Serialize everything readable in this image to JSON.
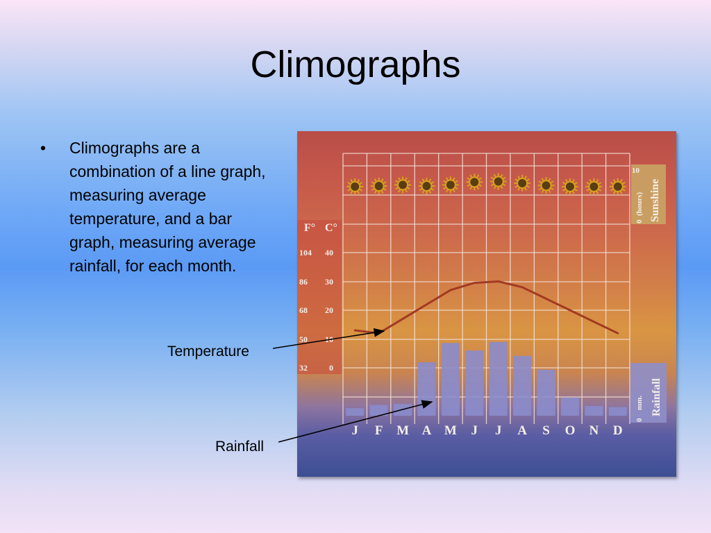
{
  "slide": {
    "title": "Climographs",
    "bullet": {
      "marker": "•",
      "text": "Climographs are a combination of a line graph, measuring average temperature, and a bar graph, measuring average rainfall, for each month."
    },
    "callouts": {
      "temperature": "Temperature",
      "rainfall": "Rainfall"
    }
  },
  "chart_data": {
    "type": "bar",
    "categories": [
      "J",
      "F",
      "M",
      "A",
      "M",
      "J",
      "J",
      "A",
      "S",
      "O",
      "N",
      "D"
    ],
    "series": [
      {
        "name": "Temperature",
        "type": "line",
        "axis": "C°",
        "values": [
          13,
          12,
          17,
          22,
          27,
          29.5,
          30,
          28,
          24,
          20,
          16,
          12
        ]
      },
      {
        "name": "Rainfall",
        "type": "bar",
        "axis": "mm.",
        "values": [
          7,
          10,
          11,
          50,
          68,
          61,
          69,
          56,
          43,
          17,
          9,
          8
        ]
      },
      {
        "name": "Sunshine",
        "type": "icons",
        "axis": "(hours)",
        "values": [
          6.6,
          6.7,
          6.9,
          6.7,
          6.9,
          7.4,
          7.5,
          7.2,
          6.8,
          6.6,
          6.6,
          6.6
        ]
      }
    ],
    "temperature_axis": {
      "fahrenheit_label": "F°",
      "celsius_label": "C°",
      "fahrenheit_ticks": [
        "104",
        "86",
        "68",
        "50",
        "32"
      ],
      "celsius_ticks": [
        "40",
        "30",
        "20",
        "10",
        "0"
      ],
      "ylim": [
        0,
        40
      ]
    },
    "rainfall_axis": {
      "title": "Rainfall",
      "unit": "mm.",
      "zero_label": "0",
      "ylim": [
        0,
        100
      ]
    },
    "sunshine_axis": {
      "title": "Sunshine",
      "unit": "(hours)",
      "max_label": "10",
      "zero_label": "0",
      "ylim": [
        0,
        10
      ]
    },
    "grid": true,
    "colors": {
      "temperature_line": "#a23a22",
      "rain_bar": "#8b8ccb",
      "sun": "#d7a21d",
      "grid": "#f3e2d6"
    }
  }
}
